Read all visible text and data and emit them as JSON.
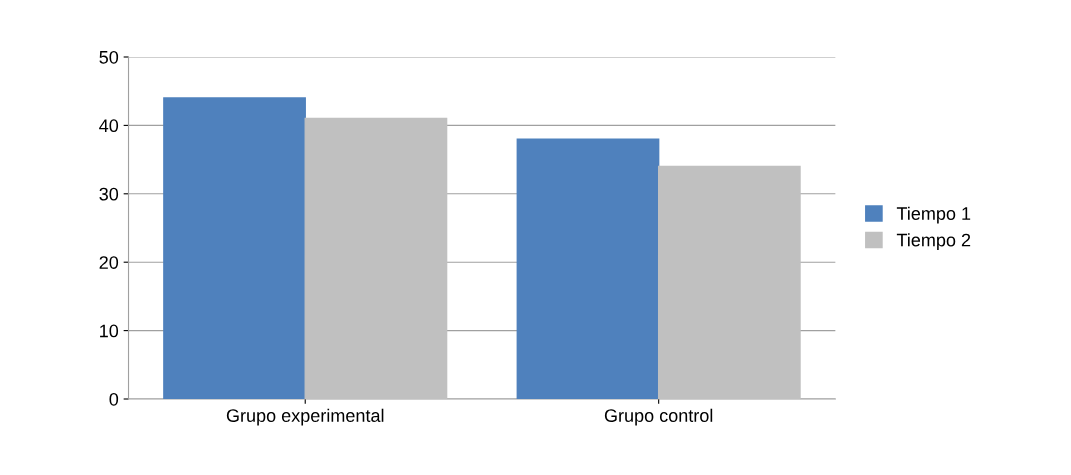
{
  "chart_data": {
    "type": "bar",
    "categories": [
      "Grupo experimental",
      "Grupo control"
    ],
    "series": [
      {
        "name": "Tiempo 1",
        "color": "#4f81bd",
        "values": [
          44,
          38
        ]
      },
      {
        "name": "Tiempo 2",
        "color": "#c0c0c0",
        "values": [
          41,
          34
        ]
      }
    ],
    "ylim": [
      0,
      50
    ],
    "yticks": [
      0,
      10,
      20,
      30,
      40,
      50
    ],
    "grid": "y",
    "legend": "right"
  }
}
